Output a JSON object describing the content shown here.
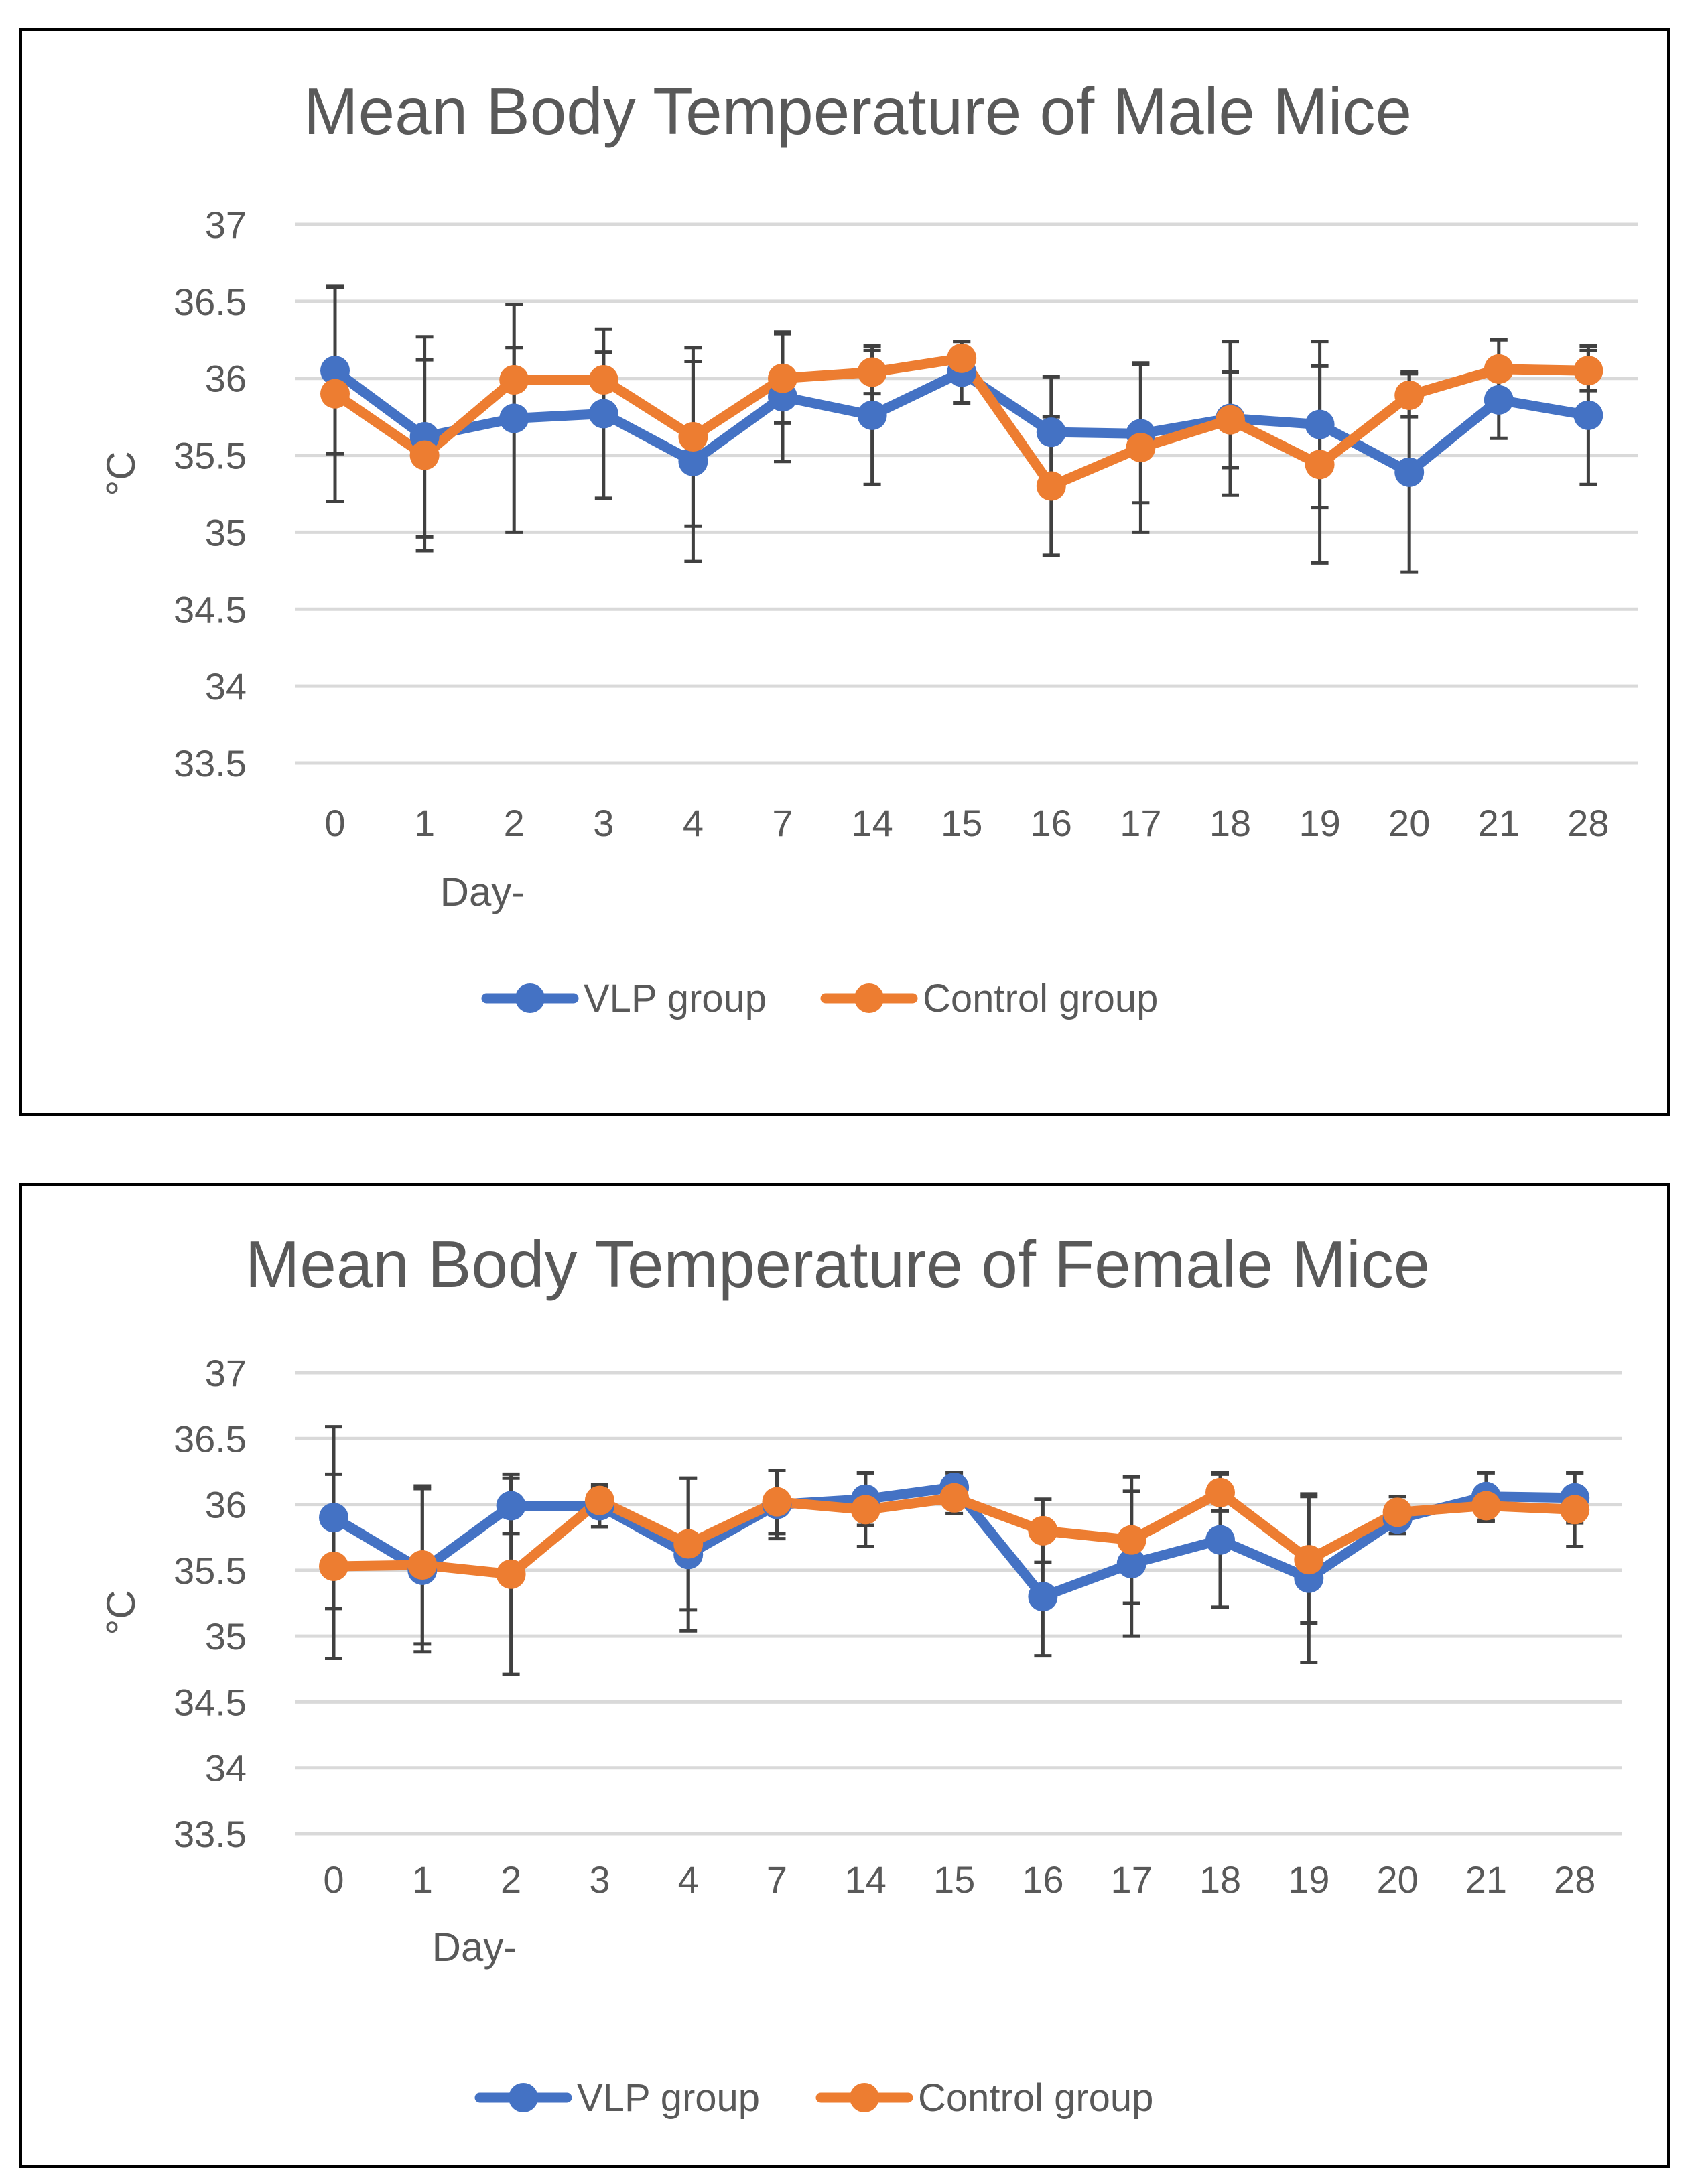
{
  "chart_data": [
    {
      "type": "line",
      "title": "Mean Body Temperature of Male Mice",
      "xlabel": "Day-",
      "ylabel": "°C",
      "categories": [
        "0",
        "1",
        "2",
        "3",
        "4",
        "7",
        "14",
        "15",
        "16",
        "17",
        "18",
        "19",
        "20",
        "21",
        "28"
      ],
      "ylim": [
        33.5,
        37
      ],
      "yticks": [
        "33.5",
        "34",
        "34.5",
        "35",
        "35.5",
        "36",
        "36.5",
        "37"
      ],
      "grid": true,
      "legend_position": "bottom",
      "series": [
        {
          "name": "VLP group",
          "color": "#4472C4",
          "values": [
            36.05,
            35.62,
            35.74,
            35.77,
            35.46,
            35.88,
            35.76,
            36.04,
            35.65,
            35.64,
            35.74,
            35.7,
            35.39,
            35.86,
            35.76
          ],
          "error": [
            0.54,
            0.65,
            0.74,
            0.55,
            0.65,
            0.42,
            0.45,
            0.2,
            0.36,
            0.45,
            0.5,
            0.54,
            0.65,
            0.25,
            0.45
          ]
        },
        {
          "name": "Control group",
          "color": "#ED7D31",
          "values": [
            35.9,
            35.5,
            35.99,
            35.99,
            35.62,
            36.0,
            36.04,
            36.13,
            35.3,
            35.55,
            35.73,
            35.44,
            35.89,
            36.06,
            36.05
          ],
          "error": [
            0.7,
            0.62,
            0.21,
            0.18,
            0.58,
            0.29,
            0.14,
            0.11,
            0.45,
            0.55,
            0.31,
            0.64,
            0.14,
            0.19,
            0.13
          ]
        }
      ]
    },
    {
      "type": "line",
      "title": "Mean Body Temperature of Female Mice",
      "xlabel": "Day-",
      "ylabel": "°C",
      "categories": [
        "0",
        "1",
        "2",
        "3",
        "4",
        "7",
        "14",
        "15",
        "16",
        "17",
        "18",
        "19",
        "20",
        "21",
        "28"
      ],
      "ylim": [
        33.5,
        37
      ],
      "yticks": [
        "33.5",
        "34",
        "34.5",
        "35",
        "35.5",
        "36",
        "36.5",
        "37"
      ],
      "grid": true,
      "legend_position": "bottom",
      "series": [
        {
          "name": "VLP group",
          "color": "#4472C4",
          "values": [
            35.9,
            35.5,
            35.99,
            35.99,
            35.62,
            36.0,
            36.04,
            36.13,
            35.3,
            35.55,
            35.73,
            35.44,
            35.89,
            36.06,
            36.05
          ],
          "error": [
            0.69,
            0.62,
            0.21,
            0.16,
            0.58,
            0.26,
            0.2,
            0.11,
            0.45,
            0.55,
            0.51,
            0.64,
            0.11,
            0.18,
            0.19
          ]
        },
        {
          "name": "Control group",
          "color": "#ED7D31",
          "values": [
            35.53,
            35.54,
            35.47,
            36.03,
            35.7,
            36.02,
            35.96,
            36.05,
            35.8,
            35.73,
            36.09,
            35.58,
            35.94,
            35.99,
            35.96
          ],
          "error": [
            0.7,
            0.6,
            0.76,
            0.1,
            0.5,
            0.24,
            0.28,
            0.12,
            0.24,
            0.48,
            0.14,
            0.48,
            0.12,
            0.12,
            0.28
          ]
        }
      ]
    }
  ]
}
